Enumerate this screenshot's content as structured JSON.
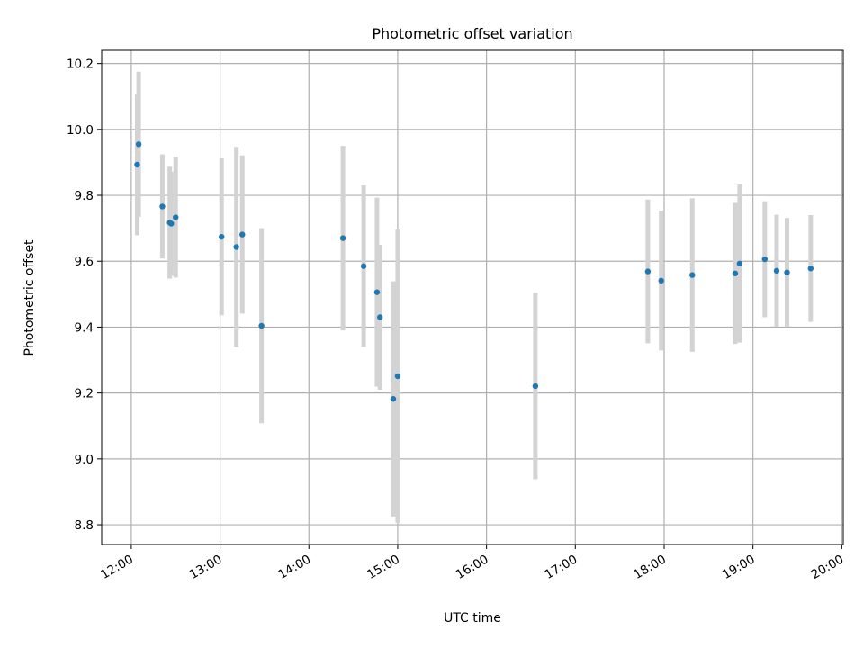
{
  "chart_data": {
    "type": "scatter",
    "title": "Photometric offset variation",
    "xlabel": "UTC time",
    "ylabel": "Photometric offset",
    "x_is_time": true,
    "xlim": [
      "11:40",
      "20:01"
    ],
    "ylim": [
      8.74,
      10.24
    ],
    "grid": true,
    "x_ticks": [
      "12:00",
      "13:00",
      "14:00",
      "15:00",
      "16:00",
      "17:00",
      "18:00",
      "19:00",
      "20:00"
    ],
    "y_ticks": [
      "8.8",
      "9.0",
      "9.2",
      "9.4",
      "9.6",
      "9.8",
      "10.0",
      "10.2"
    ],
    "point_color": "#1f77b4",
    "errorbar_color": "#d3d3d3",
    "series": [
      {
        "points": [
          {
            "x": "12:04",
            "y": 9.893,
            "err": 0.214
          },
          {
            "x": "12:05",
            "y": 9.955,
            "err": 0.22
          },
          {
            "x": "12:21",
            "y": 9.766,
            "err": 0.158
          },
          {
            "x": "12:26",
            "y": 9.717,
            "err": 0.17
          },
          {
            "x": "12:27",
            "y": 9.714,
            "err": 0.158
          },
          {
            "x": "12:30",
            "y": 9.733,
            "err": 0.183
          },
          {
            "x": "13:01",
            "y": 9.674,
            "err": 0.238
          },
          {
            "x": "13:11",
            "y": 9.643,
            "err": 0.304
          },
          {
            "x": "13:15",
            "y": 9.681,
            "err": 0.24
          },
          {
            "x": "13:28",
            "y": 9.404,
            "err": 0.296
          },
          {
            "x": "14:23",
            "y": 9.67,
            "err": 0.28
          },
          {
            "x": "14:37",
            "y": 9.585,
            "err": 0.245
          },
          {
            "x": "14:46",
            "y": 9.506,
            "err": 0.287
          },
          {
            "x": "14:48",
            "y": 9.43,
            "err": 0.22
          },
          {
            "x": "14:57",
            "y": 9.182,
            "err": 0.357
          },
          {
            "x": "15:00",
            "y": 9.251,
            "err": 0.445
          },
          {
            "x": "16:33",
            "y": 9.221,
            "err": 0.283
          },
          {
            "x": "17:49",
            "y": 9.569,
            "err": 0.218
          },
          {
            "x": "17:58",
            "y": 9.541,
            "err": 0.212
          },
          {
            "x": "18:19",
            "y": 9.558,
            "err": 0.233
          },
          {
            "x": "18:48",
            "y": 9.563,
            "err": 0.214
          },
          {
            "x": "18:51",
            "y": 9.593,
            "err": 0.24
          },
          {
            "x": "19:08",
            "y": 9.606,
            "err": 0.176
          },
          {
            "x": "19:16",
            "y": 9.571,
            "err": 0.17
          },
          {
            "x": "19:23",
            "y": 9.566,
            "err": 0.165
          },
          {
            "x": "19:39",
            "y": 9.578,
            "err": 0.162
          }
        ]
      }
    ]
  }
}
